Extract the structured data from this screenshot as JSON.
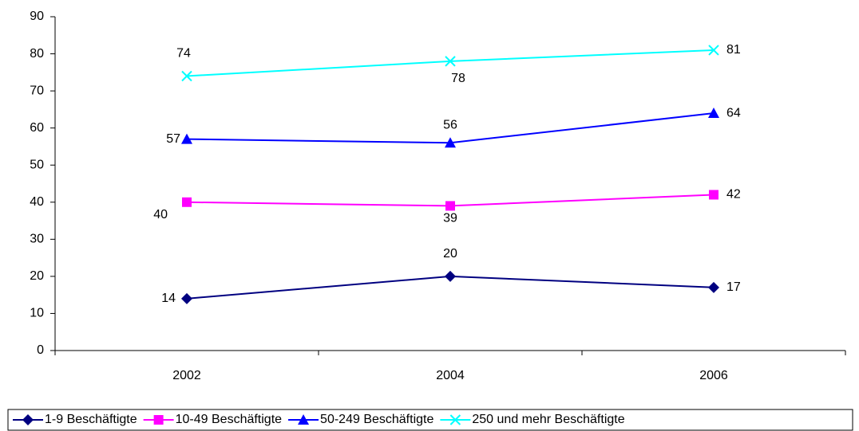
{
  "chart_data": {
    "type": "line",
    "categories": [
      "2002",
      "2004",
      "2006"
    ],
    "series": [
      {
        "name": "1-9 Beschäftigte",
        "color": "#000080",
        "values": [
          14,
          20,
          17
        ]
      },
      {
        "name": "10-49 Beschäftigte",
        "color": "#ff00ff",
        "values": [
          40,
          39,
          42
        ]
      },
      {
        "name": "50-249 Beschäftigte",
        "color": "#0000ff",
        "values": [
          57,
          56,
          64
        ]
      },
      {
        "name": "250 und mehr Beschäftigte",
        "color": "#00ffff",
        "values": [
          74,
          78,
          81
        ]
      }
    ],
    "ylim": [
      0,
      90
    ],
    "yticks": [
      0,
      10,
      20,
      30,
      40,
      50,
      60,
      70,
      80,
      90
    ],
    "legend": "bottom"
  }
}
